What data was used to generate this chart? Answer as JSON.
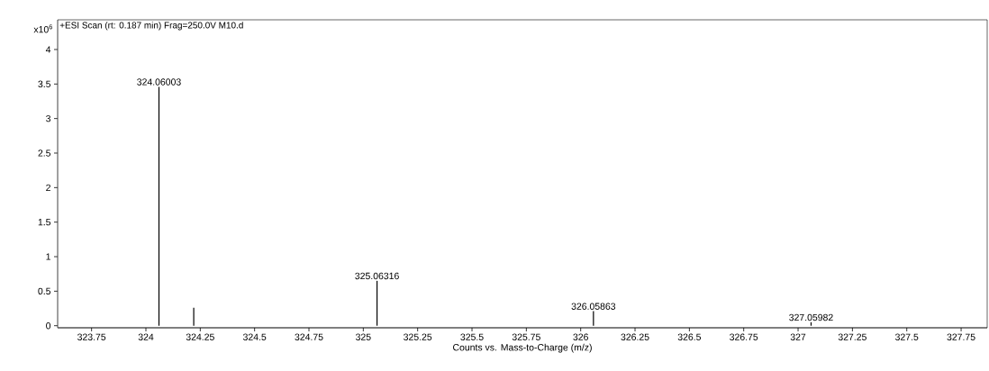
{
  "chart_data": {
    "type": "bar",
    "title": "+ESI Scan (rt: 0.187 min) Frag=250.0V M10.d",
    "xlabel": "Counts vs. Mass-to-Charge (m/z)",
    "ylabel": "x10$^{6}$",
    "x": [
      324.06003,
      324.22,
      325.06316,
      326.05863,
      327.05982
    ],
    "values": [
      3.46,
      0.26,
      0.65,
      0.21,
      0.05
    ],
    "annotations": [
      {
        "text": "324.06003",
        "x": 324.06003,
        "y": 3.46
      },
      {
        "text": "325.06316",
        "x": 325.06316,
        "y": 0.65
      },
      {
        "text": "326.05863",
        "x": 326.05863,
        "y": 0.21
      },
      {
        "text": "327.05982",
        "x": 327.05982,
        "y": 0.05
      }
    ],
    "color": "#000000",
    "xlim": [
      323.594,
      327.87
    ],
    "ylim": [
      -0.03,
      4.43
    ],
    "xticks": [
      323.75,
      324,
      324.25,
      324.5,
      324.75,
      325,
      325.25,
      325.5,
      325.75,
      326,
      326.25,
      326.5,
      326.75,
      327,
      327.25,
      327.5,
      327.75
    ],
    "yticks": [
      0,
      0.5,
      1,
      1.5,
      2,
      2.5,
      3,
      3.5,
      4
    ]
  }
}
